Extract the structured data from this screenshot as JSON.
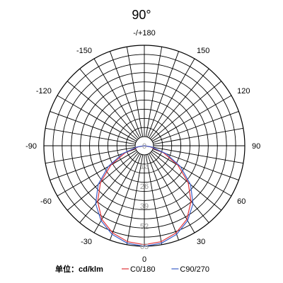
{
  "chart_data": {
    "type": "polar",
    "title": "90°",
    "angle_labels": [
      {
        "angle": 180,
        "text": "-/+180"
      },
      {
        "angle": 150,
        "text": "150"
      },
      {
        "angle": 120,
        "text": "120"
      },
      {
        "angle": 90,
        "text": "90"
      },
      {
        "angle": 60,
        "text": "60"
      },
      {
        "angle": 30,
        "text": "30"
      },
      {
        "angle": 0,
        "text": "0"
      },
      {
        "angle": -30,
        "text": "-30"
      },
      {
        "angle": -60,
        "text": "-60"
      },
      {
        "angle": -90,
        "text": "-90"
      },
      {
        "angle": -120,
        "text": "-120"
      },
      {
        "angle": -150,
        "text": "-150"
      }
    ],
    "radial_ticks": [
      "0",
      "13",
      "26",
      "39",
      "52",
      "65"
    ],
    "r_max": 65,
    "angle_step_deg": 10,
    "grid": true,
    "unit_label": "单位：cd/klm",
    "series": [
      {
        "name": "C0/180",
        "color": "#e0333a",
        "angles": [
          0,
          10,
          20,
          30,
          40,
          50,
          60,
          70,
          80,
          90
        ],
        "values": [
          64,
          63,
          60,
          55,
          47,
          37,
          25,
          13,
          4,
          0
        ]
      },
      {
        "name": "C90/270",
        "color": "#3b5fc9",
        "angles": [
          0,
          10,
          20,
          30,
          40,
          50,
          60,
          70,
          80,
          90
        ],
        "values": [
          65,
          64,
          61,
          56,
          49,
          39,
          27,
          15,
          5,
          0
        ]
      }
    ]
  },
  "legend": {
    "unit": "单位：cd/klm",
    "items": [
      {
        "label": "C0/180",
        "color": "#e0333a"
      },
      {
        "label": "C90/270",
        "color": "#3b5fc9"
      }
    ]
  }
}
